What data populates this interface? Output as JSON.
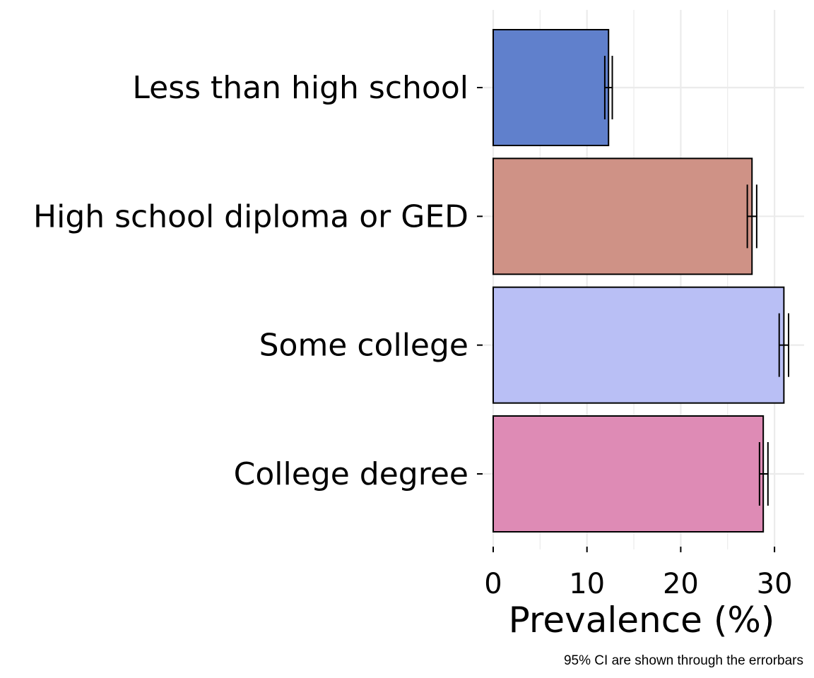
{
  "chart_data": {
    "type": "bar",
    "orientation": "horizontal",
    "categories": [
      "Less than high school",
      "High school diploma or GED",
      "Some college",
      "College degree"
    ],
    "values": [
      12.3,
      27.6,
      31.0,
      28.8
    ],
    "ci_lower": [
      11.9,
      27.1,
      30.5,
      28.4
    ],
    "ci_upper": [
      12.7,
      28.1,
      31.5,
      29.3
    ],
    "colors": [
      "#6080cc",
      "#cf9286",
      "#b9bff5",
      "#de8bb5"
    ],
    "xlabel": "Prevalence (%)",
    "ylabel": "",
    "xticks": [
      0,
      10,
      20,
      30
    ],
    "xlim": [
      0,
      33
    ],
    "grid": true,
    "legend": "none",
    "caption": "95% CI are shown through the errorbars"
  }
}
